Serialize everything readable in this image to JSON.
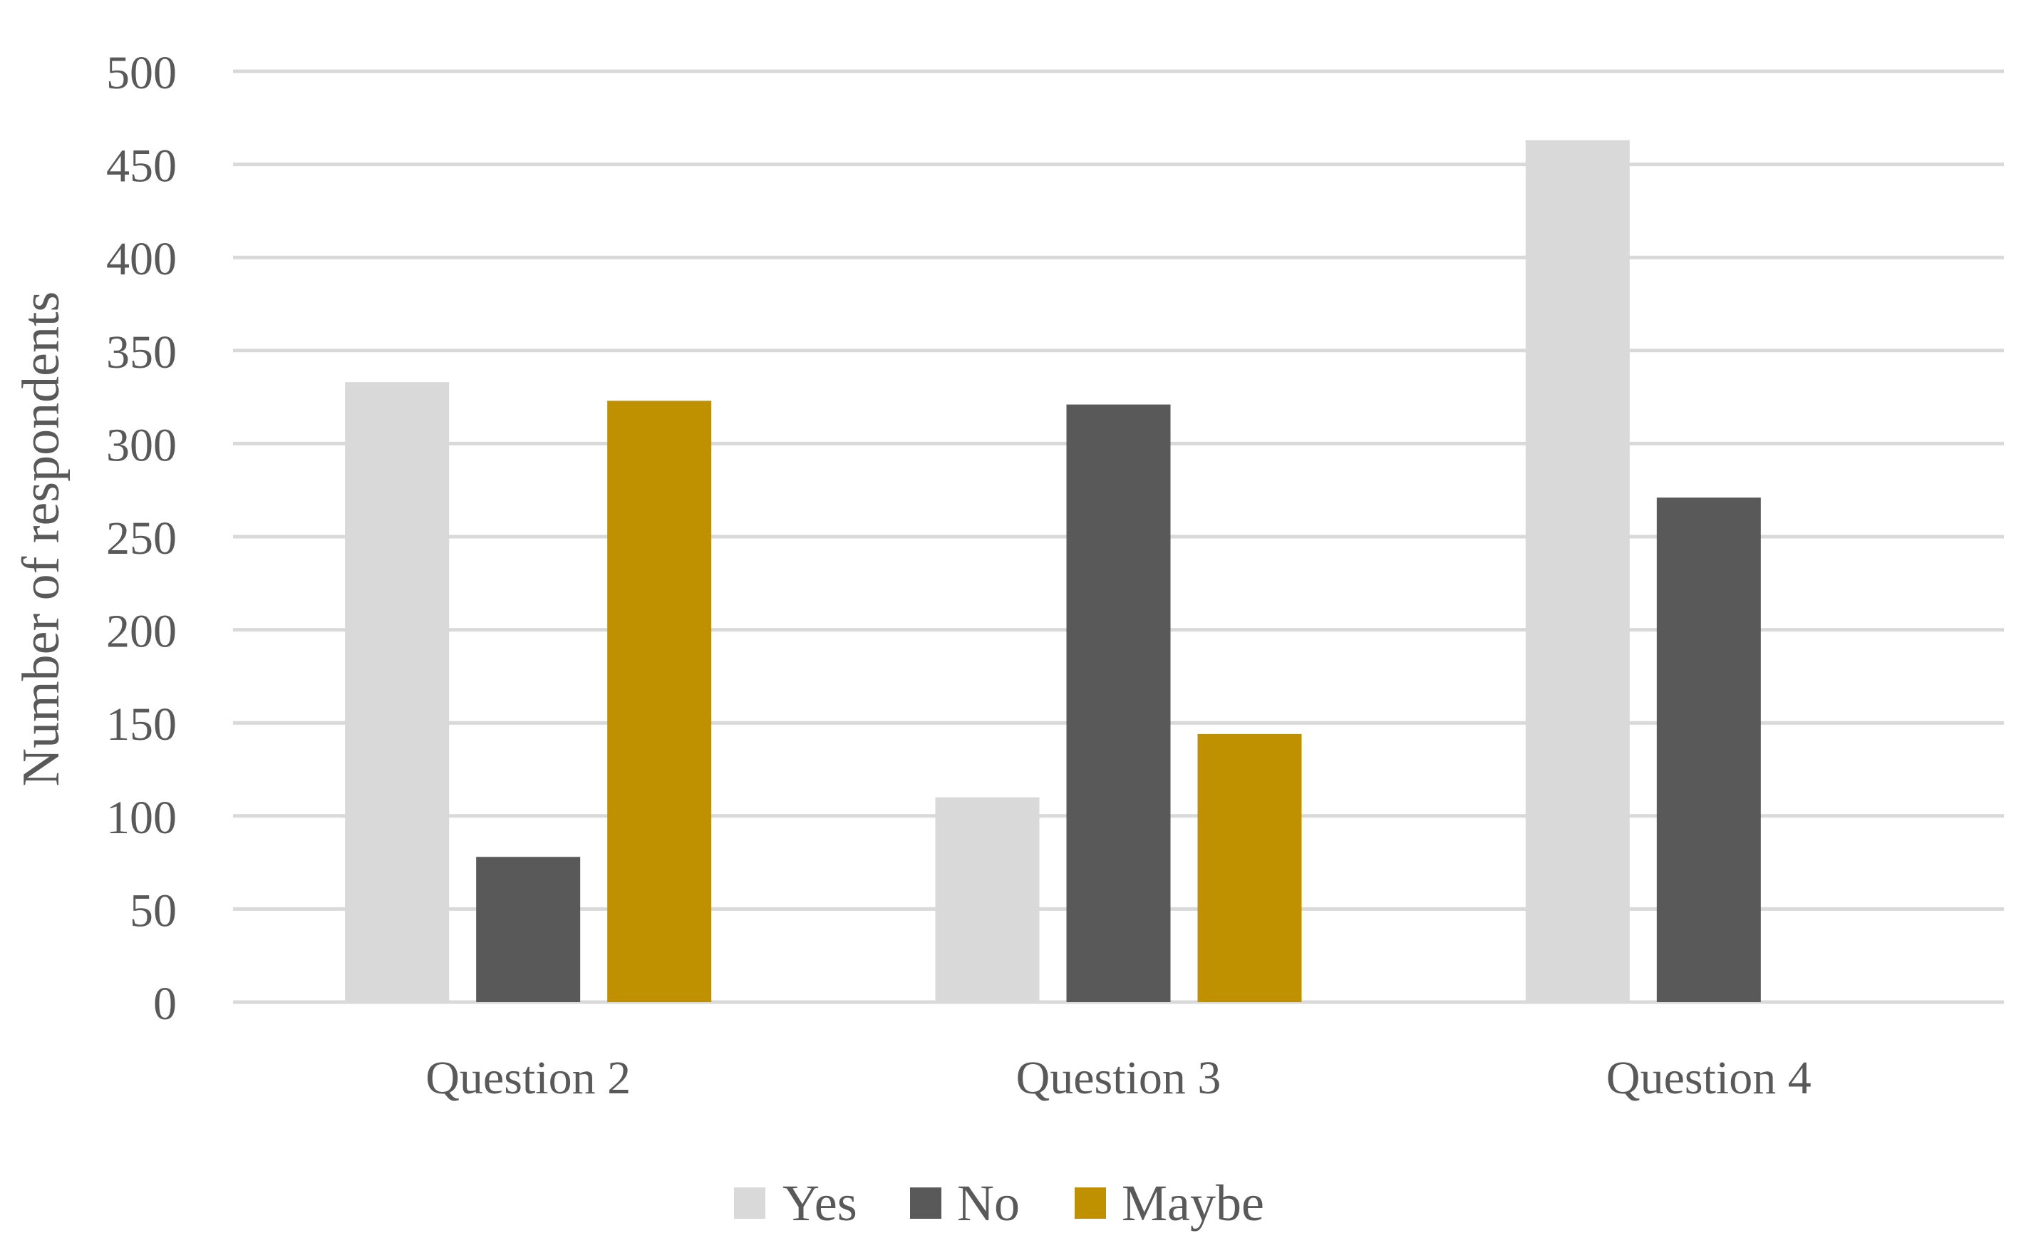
{
  "chart_data": {
    "type": "bar",
    "title": "",
    "xlabel": "",
    "ylabel": "Number of respondents",
    "categories": [
      "Question 2",
      "Question 3",
      "Question 4"
    ],
    "series": [
      {
        "name": "Yes",
        "color": "#d9d9d9",
        "values": [
          333,
          110,
          463
        ]
      },
      {
        "name": "No",
        "color": "#595959",
        "values": [
          78,
          321,
          271
        ]
      },
      {
        "name": "Maybe",
        "color": "#bf9000",
        "values": [
          323,
          144,
          0
        ]
      }
    ],
    "ylim": [
      0,
      500
    ],
    "yticks": [
      "0",
      "50",
      "100",
      "150",
      "200",
      "250",
      "300",
      "350",
      "400",
      "450",
      "500"
    ],
    "grid": true,
    "legend_position": "bottom"
  }
}
